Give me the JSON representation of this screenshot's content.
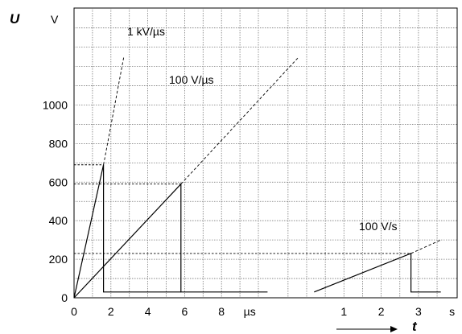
{
  "chart_data": {
    "type": "line",
    "y_symbol": "U",
    "y_unit": "V",
    "x_symbol": "t",
    "ylim": [
      0,
      1000
    ],
    "y_ticks": [
      "0",
      "200",
      "400",
      "600",
      "800",
      "1000"
    ],
    "grid": true,
    "panels": [
      {
        "x_unit": "µs",
        "x_ticks": [
          "0",
          "2",
          "4",
          "6",
          "8"
        ],
        "series": [
          {
            "name": "1 kV/µs",
            "points": [
              [
                0,
                0
              ],
              [
                1.6,
                690
              ],
              [
                1.6,
                30
              ],
              [
                5.8,
                30
              ]
            ],
            "extension_to": [
              2.7,
              1250
            ]
          },
          {
            "name": "100 V/µs",
            "points": [
              [
                0,
                0
              ],
              [
                5.8,
                590
              ],
              [
                5.8,
                30
              ],
              [
                10.5,
                30
              ]
            ],
            "extension_to": [
              12.2,
              1250
            ]
          }
        ]
      },
      {
        "x_unit": "s",
        "x_ticks": [
          "1",
          "2",
          "3",
          "s"
        ],
        "series": [
          {
            "name": "100 V/s",
            "points": [
              [
                0.2,
                30
              ],
              [
                2.8,
                230
              ],
              [
                2.8,
                30
              ],
              [
                3.6,
                30
              ]
            ],
            "extension_to": [
              3.6,
              300
            ]
          }
        ]
      }
    ]
  }
}
